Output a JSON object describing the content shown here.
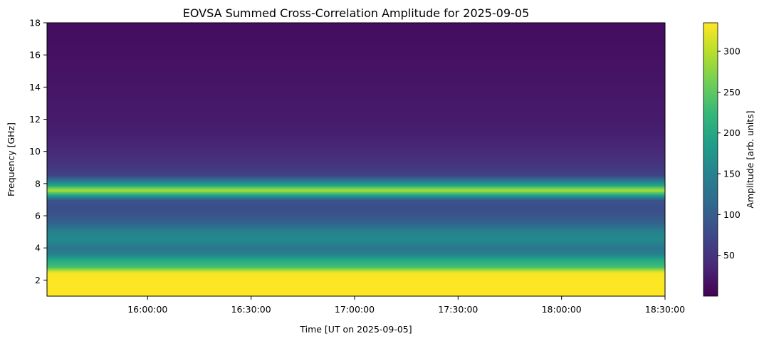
{
  "chart_data": {
    "type": "heatmap",
    "title": "EOVSA Summed Cross-Correlation Amplitude for 2025-09-05",
    "xlabel": "Time [UT on 2025-09-05]",
    "ylabel": "Frequency [GHz]",
    "colorbar_label": "Amplitude [arb. units]",
    "colormap": "viridis",
    "colormap_stops": [
      "#440154",
      "#482878",
      "#3e4989",
      "#31688e",
      "#26828e",
      "#1f9e89",
      "#35b779",
      "#6ece58",
      "#b5de2b",
      "#fde725"
    ],
    "xlim": [
      "15:30:50",
      "18:30:00"
    ],
    "ylim": [
      1.0,
      18.0
    ],
    "clim": [
      0,
      335
    ],
    "x_ticks": [
      "16:00:00",
      "16:30:00",
      "17:00:00",
      "17:30:00",
      "18:00:00",
      "18:30:00"
    ],
    "y_ticks": [
      2,
      4,
      6,
      8,
      10,
      12,
      14,
      16,
      18
    ],
    "colorbar_ticks": [
      50,
      100,
      150,
      200,
      250,
      300
    ],
    "frequency_profile": [
      {
        "freq_ghz": 1.5,
        "amplitude": 340
      },
      {
        "freq_ghz": 2.0,
        "amplitude": 335
      },
      {
        "freq_ghz": 2.5,
        "amplitude": 330
      },
      {
        "freq_ghz": 2.8,
        "amplitude": 240
      },
      {
        "freq_ghz": 3.0,
        "amplitude": 220
      },
      {
        "freq_ghz": 3.3,
        "amplitude": 200
      },
      {
        "freq_ghz": 3.6,
        "amplitude": 150
      },
      {
        "freq_ghz": 4.0,
        "amplitude": 130
      },
      {
        "freq_ghz": 4.5,
        "amplitude": 160
      },
      {
        "freq_ghz": 5.0,
        "amplitude": 150
      },
      {
        "freq_ghz": 5.5,
        "amplitude": 110
      },
      {
        "freq_ghz": 6.0,
        "amplitude": 90
      },
      {
        "freq_ghz": 6.5,
        "amplitude": 80
      },
      {
        "freq_ghz": 7.0,
        "amplitude": 90
      },
      {
        "freq_ghz": 7.6,
        "amplitude": 300
      },
      {
        "freq_ghz": 7.9,
        "amplitude": 200
      },
      {
        "freq_ghz": 8.5,
        "amplitude": 70
      },
      {
        "freq_ghz": 9.0,
        "amplitude": 55
      },
      {
        "freq_ghz": 10.0,
        "amplitude": 40
      },
      {
        "freq_ghz": 11.0,
        "amplitude": 30
      },
      {
        "freq_ghz": 12.0,
        "amplitude": 25
      },
      {
        "freq_ghz": 14.0,
        "amplitude": 20
      },
      {
        "freq_ghz": 16.0,
        "amplitude": 15
      },
      {
        "freq_ghz": 18.0,
        "amplitude": 12
      }
    ],
    "grid": false,
    "colorbar_position": "right"
  }
}
